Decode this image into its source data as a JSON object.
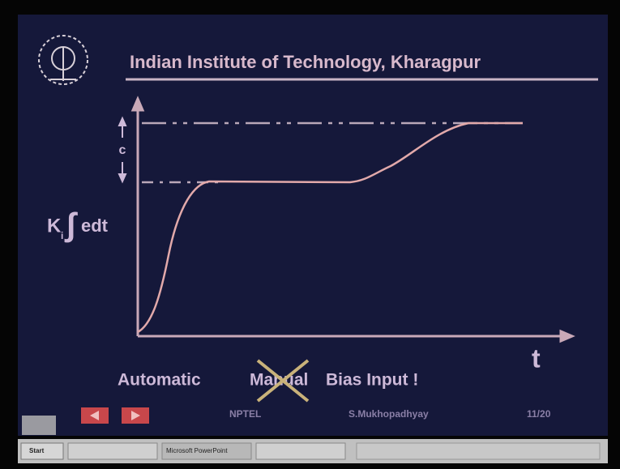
{
  "header": {
    "title": "Indian Institute of Technology, Kharagpur"
  },
  "diagram": {
    "ylabel": {
      "base": "K",
      "subscript": "i",
      "integral": "∫",
      "integrand": "edt"
    },
    "gap_label": "c",
    "xlabel": "t"
  },
  "caption": {
    "automatic": "Automatic",
    "manual": "Manual",
    "rest": "Bias Input !"
  },
  "footer": {
    "org": "NPTEL",
    "author": "S.Mukhopadhyay",
    "page": "11/20"
  },
  "taskbar": {
    "start": "Start",
    "window": "Microsoft PowerPoint"
  }
}
